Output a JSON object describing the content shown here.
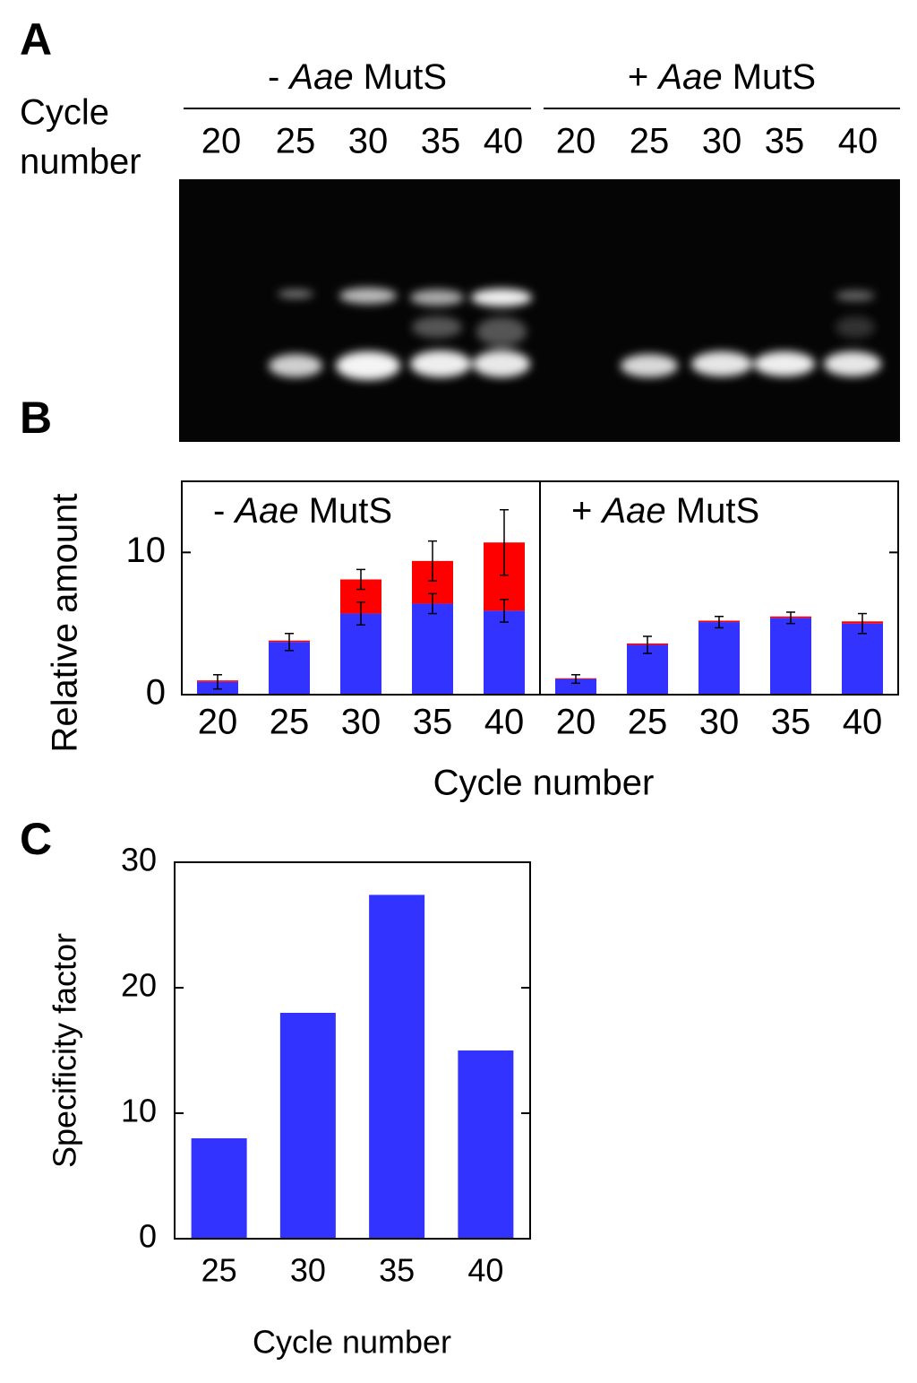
{
  "gel": {
    "panel_label": "A",
    "row_label": [
      "Cycle",
      "number"
    ],
    "groups": [
      {
        "label_runs": [
          "- ",
          "Aae",
          " MutS"
        ],
        "lanes": [
          "20",
          "25",
          "30",
          "35",
          "40"
        ]
      },
      {
        "label_runs": [
          "+ ",
          "Aae",
          " MutS"
        ],
        "lanes": [
          "20",
          "25",
          "30",
          "35",
          "40"
        ]
      }
    ]
  },
  "chart_data": [
    {
      "type": "stacked_bar",
      "panel_label": "B",
      "groups": [
        {
          "label_runs": [
            "- ",
            "Aae",
            " MutS"
          ],
          "categories": [
            "20",
            "25",
            "30",
            "35",
            "40"
          ],
          "series": [
            {
              "color": "#3333ff",
              "values": [
                0.9,
                3.7,
                5.7,
                6.4,
                5.9
              ],
              "errors": [
                0.5,
                0.6,
                0.8,
                0.7,
                0.8
              ]
            },
            {
              "color": "#ff0000",
              "values": [
                0.1,
                0.1,
                2.4,
                3.0,
                4.8
              ],
              "errors": [
                null,
                null,
                0.7,
                1.4,
                2.3
              ]
            }
          ]
        },
        {
          "label_runs": [
            "+ ",
            "Aae",
            " MutS"
          ],
          "categories": [
            "20",
            "25",
            "30",
            "35",
            "40"
          ],
          "series": [
            {
              "color": "#3333ff",
              "values": [
                1.1,
                3.5,
                5.1,
                5.4,
                5.0
              ],
              "errors": [
                0.3,
                0.6,
                0.4,
                0.4,
                0.7
              ]
            },
            {
              "color": "#ff0000",
              "values": [
                0.05,
                0.1,
                0.1,
                0.1,
                0.15
              ],
              "errors": [
                null,
                null,
                null,
                null,
                null
              ]
            }
          ]
        }
      ],
      "ylim": [
        0,
        15
      ],
      "yticks": [
        0,
        10
      ],
      "xlabel": "Cycle number",
      "ylabel": "Relative amount"
    },
    {
      "type": "bar",
      "panel_label": "C",
      "categories": [
        "25",
        "30",
        "35",
        "40"
      ],
      "values": [
        8,
        18,
        27.4,
        15
      ],
      "color": "#3333ff",
      "ylim": [
        0,
        30
      ],
      "yticks": [
        0,
        10,
        20,
        30
      ],
      "xlabel": "Cycle number",
      "ylabel": "Specificity factor"
    }
  ]
}
